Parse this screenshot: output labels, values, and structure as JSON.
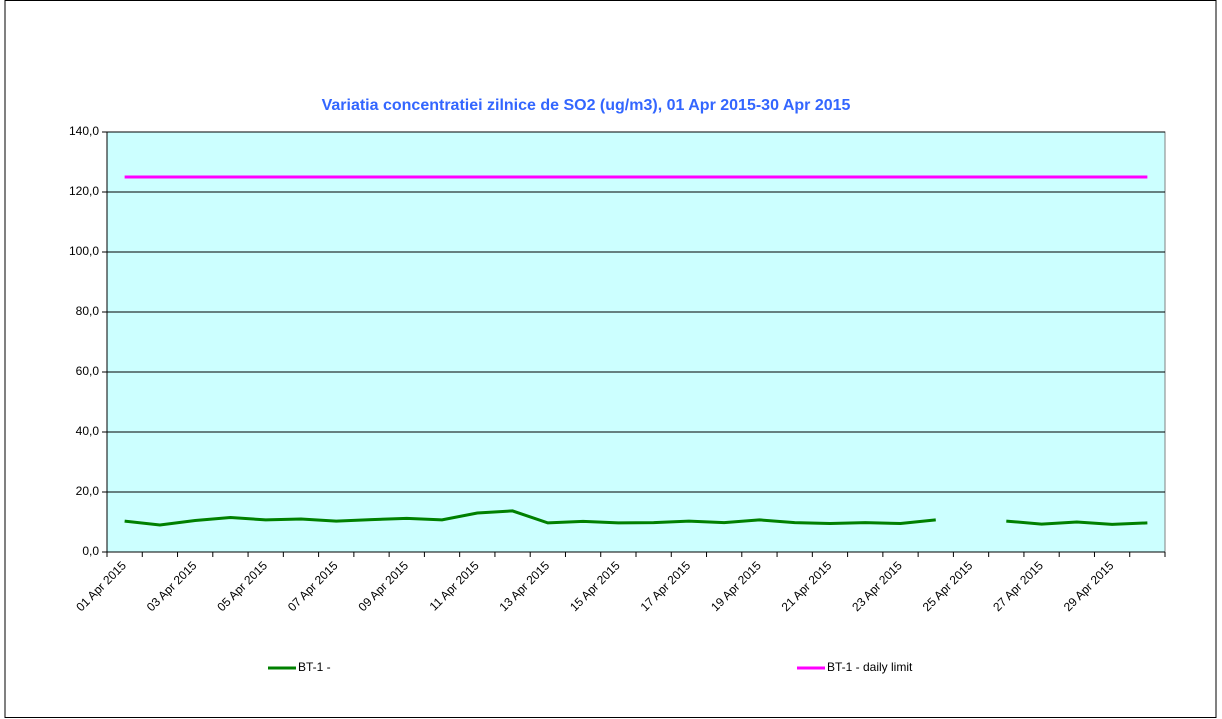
{
  "chart_data": {
    "type": "line",
    "title": "Variatia concentratiei zilnice de  SO2 (ug/m3),  01 Apr 2015-30 Apr 2015",
    "categories": [
      "01 Apr 2015",
      null,
      "03 Apr 2015",
      null,
      "05 Apr 2015",
      null,
      "07 Apr 2015",
      null,
      "09 Apr 2015",
      null,
      "11 Apr 2015",
      null,
      "13 Apr 2015",
      null,
      "15 Apr 2015",
      null,
      "17 Apr 2015",
      null,
      "19 Apr 2015",
      null,
      "21 Apr 2015",
      null,
      "23 Apr 2015",
      null,
      "25 Apr 2015",
      null,
      "27 Apr 2015",
      null,
      "29 Apr 2015",
      null
    ],
    "series": [
      {
        "name": "BT-1 -",
        "color": "#008000",
        "values": [
          10.3,
          9.0,
          10.5,
          11.5,
          10.7,
          11.0,
          10.3,
          10.8,
          11.2,
          10.7,
          13.0,
          13.7,
          9.7,
          10.2,
          9.7,
          9.8,
          10.3,
          9.8,
          10.7,
          9.8,
          9.5,
          9.8,
          9.5,
          10.7,
          null,
          10.3,
          9.3,
          10.0,
          9.2,
          9.7
        ]
      },
      {
        "name": "BT-1 - daily limit",
        "color": "#ff00ff",
        "values": [
          125,
          125,
          125,
          125,
          125,
          125,
          125,
          125,
          125,
          125,
          125,
          125,
          125,
          125,
          125,
          125,
          125,
          125,
          125,
          125,
          125,
          125,
          125,
          125,
          125,
          125,
          125,
          125,
          125,
          125
        ]
      }
    ],
    "ylim": [
      0,
      140
    ],
    "yticks": [
      {
        "value": 0,
        "label": "0,0"
      },
      {
        "value": 20,
        "label": "20,0"
      },
      {
        "value": 40,
        "label": "40,0"
      },
      {
        "value": 60,
        "label": "60,0"
      },
      {
        "value": 80,
        "label": "80,0"
      },
      {
        "value": 100,
        "label": "100,0"
      },
      {
        "value": 120,
        "label": "120,0"
      },
      {
        "value": 140,
        "label": "140,0"
      }
    ],
    "grid": true,
    "legend": "bottom",
    "plot_background": "#ccffff"
  }
}
